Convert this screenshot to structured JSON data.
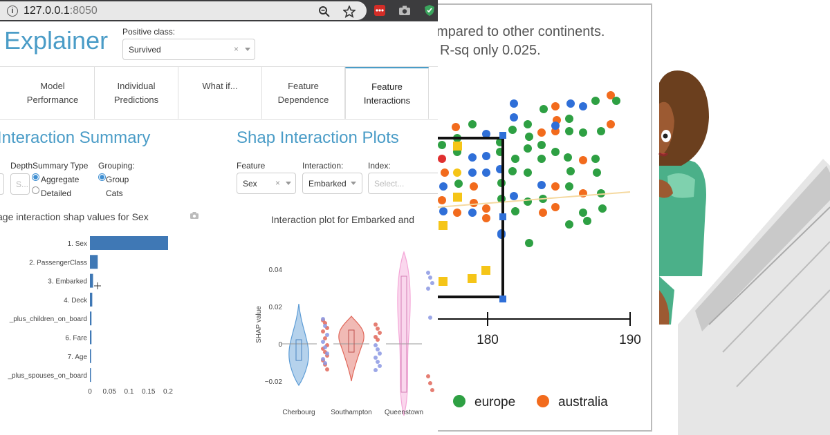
{
  "browser": {
    "url_host": "127.0.0.1",
    "url_port": ":8050"
  },
  "app": {
    "title": "Explainer",
    "positive_class_label": "Positive class:",
    "positive_class_value": "Survived"
  },
  "tabs": [
    {
      "label": "Model\nPerformance"
    },
    {
      "label": "Individual\nPredictions"
    },
    {
      "label": "What if..."
    },
    {
      "label": "Feature\nDependence"
    },
    {
      "label": "Feature\nInteractions",
      "active": true
    }
  ],
  "summary": {
    "title": "Interaction Summary",
    "depth_label": "Depth",
    "depth_placeholder": "S...",
    "summary_type_label": "Summary Type",
    "summary_type_options": [
      "Aggregate",
      "Detailed"
    ],
    "grouping_label": "Grouping:",
    "grouping_option": "Group",
    "grouping_option2": "Cats",
    "chart_title": "age interaction shap values for Sex"
  },
  "plots": {
    "title": "Shap Interaction Plots",
    "feature_label": "Feature",
    "feature_value": "Sex",
    "interaction_label": "Interaction:",
    "interaction_value": "Embarked",
    "index_label": "Index:",
    "index_placeholder": "Select...",
    "chart_title": "Interaction plot for Embarked and"
  },
  "chart_data": [
    {
      "type": "bar",
      "orientation": "horizontal",
      "categories": [
        "1. Sex",
        "2. PassengerClass",
        "3. Embarked",
        "4. Deck",
        "_plus_children_on_board",
        "6. Fare",
        "7. Age",
        "_plus_spouses_on_board"
      ],
      "values": [
        0.2,
        0.02,
        0.008,
        0.006,
        0.004,
        0.004,
        0.003,
        0.002
      ],
      "xticks": [
        "0",
        "0.05",
        "0.1",
        "0.15",
        "0.2"
      ],
      "xlim": [
        0,
        0.21
      ],
      "color": "#3f78b5"
    },
    {
      "type": "violin",
      "ylabel": "SHAP value",
      "yticks": [
        "0.04",
        "0.02",
        "0",
        "−0.02"
      ],
      "ylim": [
        -0.025,
        0.05
      ],
      "categories": [
        "Cherbourg",
        "Southampton",
        "Queenstown"
      ],
      "colors": [
        "#5b9bd5",
        "#e0675a",
        "#f4a6d7"
      ]
    },
    {
      "type": "scatter",
      "header_lines": [
        "mpared to other continents.",
        "R-sq only 0.025."
      ],
      "xticks": [
        "180",
        "190"
      ],
      "legend": [
        "europe",
        "australia"
      ],
      "colors": {
        "europe": "#2ea043",
        "australia": "#f26b1d",
        "other_blue": "#2f6fd8",
        "yellow": "#f5c518",
        "red": "#e03030"
      }
    }
  ]
}
